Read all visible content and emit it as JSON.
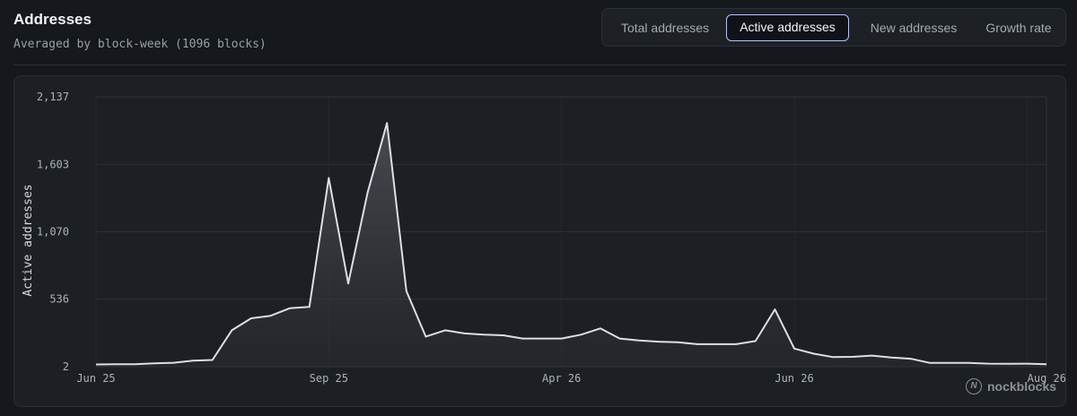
{
  "header": {
    "title": "Addresses",
    "subtitle": "Averaged by block-week (1096 blocks)"
  },
  "tabs": [
    {
      "label": "Total addresses",
      "active": false
    },
    {
      "label": "Active addresses",
      "active": true
    },
    {
      "label": "New addresses",
      "active": false
    },
    {
      "label": "Growth rate",
      "active": false
    }
  ],
  "watermark": {
    "text": "nockblocks",
    "icon": "nockblocks-logo-icon"
  },
  "colors": {
    "line": "#dcdfe3",
    "grid": "#2f343a",
    "fill_top": "#4a4e54",
    "background": "#15181c"
  },
  "chart_data": {
    "type": "area",
    "ylabel": "Active addresses",
    "y_ticks": [
      "2,137",
      "1,603",
      "1,070",
      "536",
      "2"
    ],
    "y_tick_values": [
      2137,
      1603,
      1070,
      536,
      2
    ],
    "ylim": [
      2,
      2137
    ],
    "x_tick_labels": [
      "Jun 25",
      "Sep 25",
      "Apr 26",
      "Jun 26",
      "Aug 26"
    ],
    "x_tick_index": [
      0,
      12,
      24,
      36,
      48
    ],
    "grid": true,
    "series": [
      {
        "values": [
          20,
          22,
          22,
          28,
          33,
          50,
          55,
          290,
          385,
          405,
          465,
          475,
          1495,
          660,
          1380,
          1930,
          600,
          240,
          290,
          265,
          255,
          250,
          225,
          225,
          225,
          255,
          305,
          225,
          210,
          200,
          195,
          180,
          180,
          180,
          205,
          455,
          145,
          105,
          78,
          80,
          90,
          75,
          65,
          32,
          32,
          32,
          26,
          25,
          26,
          22
        ]
      }
    ]
  }
}
